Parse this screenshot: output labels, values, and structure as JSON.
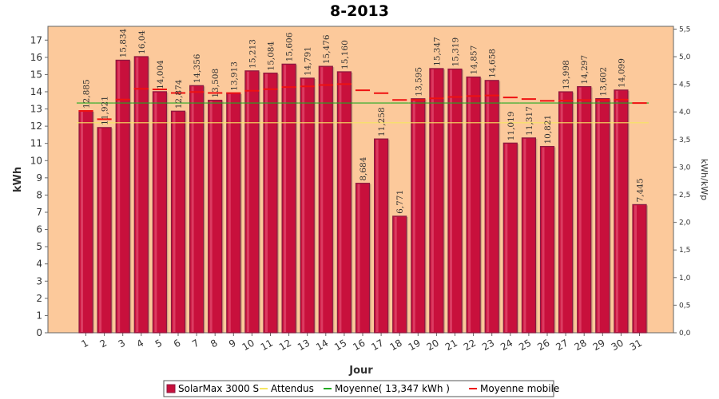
{
  "chart_data": {
    "type": "bar",
    "title": "8-2013",
    "xlabel": "Jour",
    "ylabel": "kWh",
    "y2label": "kWh/kWp",
    "ylim": [
      0,
      17.8
    ],
    "yticks": [
      0,
      1,
      2,
      3,
      4,
      5,
      6,
      7,
      8,
      9,
      10,
      11,
      12,
      13,
      14,
      15,
      16,
      17
    ],
    "y2lim": [
      0,
      5.55
    ],
    "y2ticks": [
      "0,0",
      "0,5",
      "1,0",
      "1,5",
      "2,0",
      "2,5",
      "3,0",
      "3,5",
      "4,0",
      "4,5",
      "5,0",
      "5,5"
    ],
    "y2tick_values": [
      0,
      0.5,
      1.0,
      1.5,
      2.0,
      2.5,
      3.0,
      3.5,
      4.0,
      4.5,
      5.0,
      5.5
    ],
    "categories": [
      "1",
      "2",
      "3",
      "4",
      "5",
      "6",
      "7",
      "8",
      "9",
      "10",
      "11",
      "12",
      "13",
      "14",
      "15",
      "16",
      "17",
      "18",
      "19",
      "20",
      "21",
      "22",
      "23",
      "24",
      "25",
      "26",
      "27",
      "28",
      "29",
      "30",
      "31"
    ],
    "series": [
      {
        "name": "SolarMax 3000 S",
        "kind": "bar",
        "color": "#c8103c",
        "values": [
          12.885,
          11.921,
          15.834,
          16.04,
          14.004,
          12.874,
          14.356,
          13.508,
          13.913,
          15.213,
          15.084,
          15.606,
          14.791,
          15.476,
          15.16,
          8.684,
          11.258,
          6.771,
          13.595,
          15.347,
          15.319,
          14.857,
          14.658,
          11.019,
          11.317,
          10.821,
          13.998,
          14.297,
          13.602,
          14.099,
          7.445
        ],
        "labels": [
          "12,885",
          "11,921",
          "15,834",
          "16,04",
          "14,004",
          "12,874",
          "14,356",
          "13,508",
          "13,913",
          "15,213",
          "15,084",
          "15,606",
          "14,791",
          "15,476",
          "15,160",
          "8,684",
          "11,258",
          "6,771",
          "13,595",
          "15,347",
          "15,319",
          "14,857",
          "14,658",
          "11,019",
          "11,317",
          "10,821",
          "13,998",
          "14,297",
          "13,602",
          "14,099",
          "7,445"
        ]
      },
      {
        "name": "Attendus",
        "kind": "line",
        "color": "#f5e663",
        "values": [
          12.2,
          12.2,
          12.2,
          12.2,
          12.2,
          12.2,
          12.2,
          12.2,
          12.2,
          12.2,
          12.2,
          12.2,
          12.2,
          12.2,
          12.2,
          12.2,
          12.2,
          12.2,
          12.2,
          12.2,
          12.2,
          12.2,
          12.2,
          12.2,
          12.2,
          12.2,
          12.2,
          12.2,
          12.2,
          12.2,
          12.2
        ]
      },
      {
        "name": "Moyenne( 13,347 kWh )",
        "kind": "line",
        "color": "#22aa22",
        "values": [
          13.347,
          13.347,
          13.347,
          13.347,
          13.347,
          13.347,
          13.347,
          13.347,
          13.347,
          13.347,
          13.347,
          13.347,
          13.347,
          13.347,
          13.347,
          13.347,
          13.347,
          13.347,
          13.347,
          13.347,
          13.347,
          13.347,
          13.347,
          13.347,
          13.347,
          13.347,
          13.347,
          13.347,
          13.347,
          13.347,
          13.347
        ]
      },
      {
        "name": "Moyenne mobile",
        "kind": "line-dashed",
        "color": "#ee1111",
        "values": [
          12.885,
          12.403,
          13.547,
          14.17,
          14.137,
          13.927,
          13.988,
          13.928,
          13.926,
          14.055,
          14.15,
          14.271,
          14.311,
          14.394,
          14.445,
          14.085,
          13.919,
          13.522,
          13.526,
          13.616,
          13.697,
          13.747,
          13.786,
          13.67,
          13.576,
          13.471,
          13.49,
          13.52,
          13.523,
          13.543,
          13.346
        ]
      }
    ],
    "legend_position": "bottom",
    "grid": false,
    "colors": {
      "plot_background": "#fcc99b",
      "bar_fill": "#c8103c",
      "bar_edge": "#8a1a40"
    }
  }
}
